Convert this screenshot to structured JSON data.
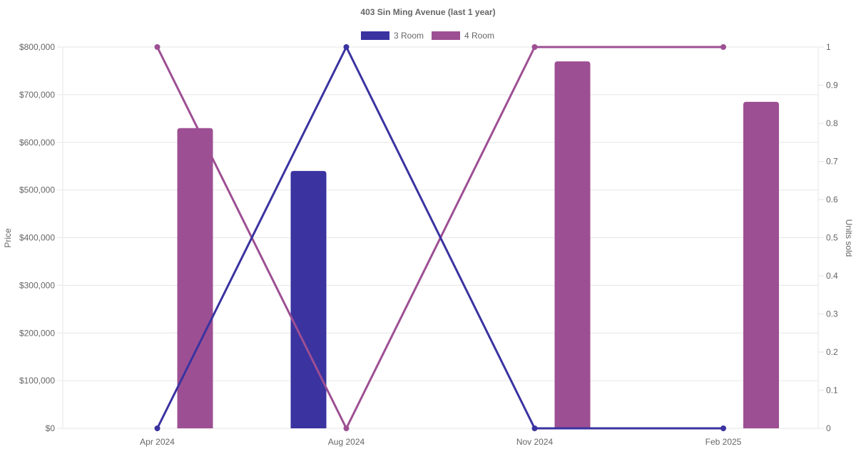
{
  "chart_data": {
    "type": "bar",
    "title": "403 Sin Ming Avenue (last 1 year)",
    "categories": [
      "Apr 2024",
      "Aug 2024",
      "Nov 2024",
      "Feb 2025"
    ],
    "series": [
      {
        "name": "3 Room",
        "color": "#3a33a0",
        "prices": [
          null,
          540000,
          null,
          null
        ],
        "units_sold": [
          0,
          1,
          0,
          0
        ]
      },
      {
        "name": "4 Room",
        "color": "#9d4f93",
        "prices": [
          630000,
          null,
          770000,
          685000
        ],
        "units_sold": [
          1,
          0,
          1,
          1
        ]
      }
    ],
    "y_left": {
      "label": "Price",
      "range": [
        0,
        800000
      ],
      "ticks": [
        "$0",
        "$100,000",
        "$200,000",
        "$300,000",
        "$400,000",
        "$500,000",
        "$600,000",
        "$700,000",
        "$800,000"
      ]
    },
    "y_right": {
      "label": "Units sold",
      "range": [
        0,
        1
      ],
      "ticks": [
        "0",
        "0.1",
        "0.2",
        "0.3",
        "0.4",
        "0.5",
        "0.6",
        "0.7",
        "0.8",
        "0.9",
        "1"
      ]
    },
    "legend_position": "top",
    "grid": true
  }
}
